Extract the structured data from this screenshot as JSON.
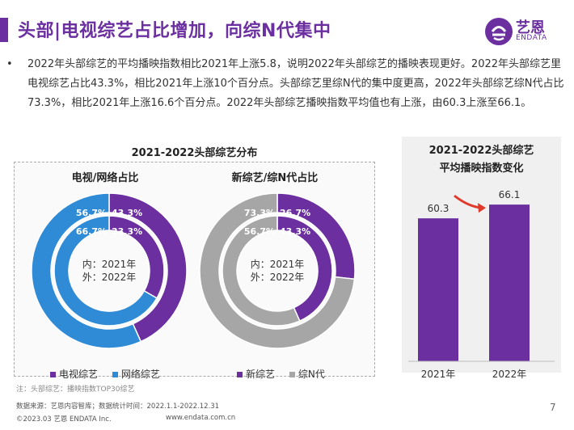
{
  "page": {
    "title": "头部|电视综艺占比增加，向综N代集中",
    "summary_bullet": "•",
    "summary": "2022年头部综艺的平均播映指数相比2021年上涨5.8，说明2022年头部综艺的播映表现更好。2022年头部综艺里电视综艺占比43.3%，相比2021年上涨10个百分点。头部综艺里综N代的集中度更高，2022年头部综艺综N代占比73.3%，相比2021年上涨16.6个百分点。2022年头部综艺播映指数平均值也有上涨，由60.3上涨至66.1。",
    "page_number": "7"
  },
  "logo": {
    "cn": "艺恩",
    "en": "ENDATA",
    "icon": "endata-logo"
  },
  "colors": {
    "brand": "#6b2fa0",
    "tv": "#6b2fa0",
    "network": "#2f8bd6",
    "new": "#6b2fa0",
    "sequel": "#a6a6a6",
    "arrow": "#e03a2a"
  },
  "footer": {
    "note": "注：头部综艺：播映指数TOP30综艺",
    "source": "数据来源：艺恩内容智库；数据统计时间：2022.1.1-2022.12.31",
    "copyright": "©2023.03 艺恩 ENDATA Inc.",
    "website": "www.endata.com.cn"
  },
  "chart_data": [
    {
      "type": "pie",
      "variant": "nested-donut",
      "section_title": "2021-2022头部综艺分布",
      "title": "电视/网络占比",
      "center_text": [
        "内：2021年",
        "外：2022年"
      ],
      "rings": [
        {
          "name": "2021年",
          "position": "inner",
          "categories": [
            "电视综艺",
            "网络综艺"
          ],
          "values": [
            33.3,
            66.7
          ],
          "labels": [
            "33.3%",
            "66.7%"
          ]
        },
        {
          "name": "2022年",
          "position": "outer",
          "categories": [
            "电视综艺",
            "网络综艺"
          ],
          "values": [
            43.3,
            56.7
          ],
          "labels": [
            "43.3%",
            "56.7%"
          ]
        }
      ],
      "legend": [
        "电视综艺",
        "网络综艺"
      ],
      "legend_position": "bottom"
    },
    {
      "type": "pie",
      "variant": "nested-donut",
      "title": "新综艺/综N代占比",
      "center_text": [
        "内：2021年",
        "外：2022年"
      ],
      "rings": [
        {
          "name": "2021年",
          "position": "inner",
          "categories": [
            "新综艺",
            "综N代"
          ],
          "values": [
            43.3,
            56.7
          ],
          "labels": [
            "43.3%",
            "56.7%"
          ]
        },
        {
          "name": "2022年",
          "position": "outer",
          "categories": [
            "新综艺",
            "综N代"
          ],
          "values": [
            26.7,
            73.3
          ],
          "labels": [
            "26.7%",
            "73.3%"
          ]
        }
      ],
      "legend": [
        "新综艺",
        "综N代"
      ],
      "legend_position": "bottom"
    },
    {
      "type": "bar",
      "title": "2021-2022头部综艺\n平均播映指数变化",
      "title_lines": [
        "2021-2022头部综艺",
        "平均播映指数变化"
      ],
      "categories": [
        "2021年",
        "2022年"
      ],
      "values": [
        60.3,
        66.1
      ],
      "value_labels": [
        "60.3",
        "66.1"
      ],
      "ylim": [
        0,
        75
      ],
      "grid": false,
      "annotation": "increase arrow from 2021年 to 2022年"
    }
  ]
}
